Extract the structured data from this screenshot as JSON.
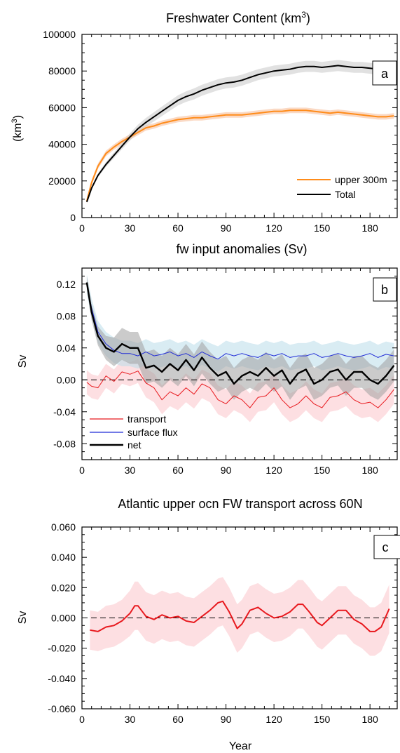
{
  "chart_data": [
    {
      "panel": "a",
      "type": "line",
      "title": "Freshwater Content (km",
      "title_sup": "3",
      "title_close": ")",
      "ylabel": "(km",
      "ylabel_sup": "3",
      "ylabel_close": ")",
      "xlabel": "",
      "xlim": [
        0,
        197
      ],
      "ylim": [
        0,
        100000
      ],
      "xticks": [
        0,
        30,
        60,
        90,
        120,
        150,
        180
      ],
      "yticks": [
        0,
        20000,
        40000,
        60000,
        80000,
        100000
      ],
      "yticklabels": [
        "0",
        "20000",
        "40000",
        "60000",
        "80000",
        "100000"
      ],
      "legend_position": "bottom-right",
      "zero_line": false,
      "series": [
        {
          "name": "upper 300m",
          "color": "#ff8c1a",
          "band_color": "#f5b994",
          "width": 2,
          "x": [
            3,
            6,
            10,
            15,
            20,
            25,
            30,
            35,
            40,
            45,
            50,
            55,
            60,
            65,
            70,
            75,
            80,
            85,
            90,
            95,
            100,
            105,
            110,
            115,
            120,
            125,
            130,
            135,
            140,
            145,
            150,
            155,
            160,
            165,
            170,
            175,
            180,
            185,
            190,
            195
          ],
          "y": [
            9000,
            19000,
            28000,
            35000,
            38500,
            41500,
            44000,
            46500,
            49000,
            50000,
            51500,
            52500,
            53500,
            54000,
            54500,
            54500,
            55000,
            55500,
            56000,
            56000,
            56000,
            56500,
            57000,
            57500,
            58000,
            58000,
            58500,
            58500,
            58500,
            58000,
            57500,
            57000,
            57500,
            57000,
            56500,
            56000,
            55500,
            55000,
            55000,
            55500
          ],
          "band": [
            1500,
            1500,
            1500,
            1500,
            1500,
            1500,
            1500,
            1500,
            1500,
            1500,
            1500,
            1500,
            1500,
            1500,
            1500,
            1500,
            1500,
            1500,
            1500,
            1500,
            1500,
            1500,
            1500,
            1500,
            1500,
            1500,
            1500,
            1500,
            1500,
            1500,
            1500,
            1500,
            1500,
            1500,
            1500,
            1500,
            1500,
            1500,
            1500,
            1500
          ]
        },
        {
          "name": "Total",
          "color": "#000000",
          "band_color": "#c8c8c8",
          "width": 2,
          "x": [
            3,
            6,
            10,
            15,
            20,
            25,
            30,
            35,
            40,
            45,
            50,
            55,
            60,
            65,
            70,
            75,
            80,
            85,
            90,
            95,
            100,
            105,
            110,
            115,
            120,
            125,
            130,
            135,
            140,
            145,
            150,
            155,
            160,
            165,
            170,
            175,
            180,
            185,
            190,
            195
          ],
          "y": [
            8500,
            16000,
            23000,
            29000,
            34000,
            39000,
            44000,
            48500,
            52000,
            55000,
            58000,
            61000,
            64000,
            66000,
            67500,
            69500,
            71000,
            72500,
            73500,
            74000,
            75000,
            76500,
            78000,
            79000,
            80000,
            80500,
            81000,
            82000,
            82500,
            82500,
            82000,
            82500,
            83000,
            82500,
            82000,
            82000,
            81500,
            81000,
            80500,
            81500
          ],
          "band": [
            500,
            700,
            1000,
            1300,
            1500,
            1700,
            2000,
            2200,
            2400,
            2500,
            2600,
            2700,
            2800,
            2900,
            3000,
            3000,
            3000,
            3000,
            3000,
            3000,
            3000,
            3000,
            3000,
            3000,
            3000,
            3000,
            3000,
            3000,
            3000,
            3000,
            3000,
            3000,
            3000,
            3000,
            3000,
            3000,
            3000,
            3000,
            3000,
            3000
          ]
        }
      ]
    },
    {
      "panel": "b",
      "type": "line",
      "title": "fw input anomalies (Sv)",
      "ylabel": "Sv",
      "xlabel": "",
      "xlim": [
        0,
        197
      ],
      "ylim": [
        -0.1,
        0.14
      ],
      "xticks": [
        0,
        30,
        60,
        90,
        120,
        150,
        180
      ],
      "yticks": [
        -0.08,
        -0.04,
        0.0,
        0.04,
        0.08,
        0.12
      ],
      "yticklabels": [
        "-0.08",
        "-0.04",
        "0.00",
        "0.04",
        "0.08",
        "0.12"
      ],
      "legend_position": "bottom-left",
      "zero_line": true,
      "series": [
        {
          "name": "transport",
          "color": "#e8191e",
          "band_color": "#fbc4cb",
          "width": 1,
          "x": [
            3,
            6,
            10,
            15,
            20,
            25,
            30,
            35,
            40,
            45,
            50,
            55,
            60,
            65,
            70,
            75,
            80,
            85,
            90,
            95,
            100,
            105,
            110,
            115,
            120,
            125,
            130,
            135,
            140,
            145,
            150,
            155,
            160,
            165,
            170,
            175,
            180,
            185,
            190,
            195
          ],
          "y": [
            -0.003,
            -0.008,
            -0.01,
            0.005,
            -0.002,
            0.01,
            0.007,
            0.011,
            -0.004,
            -0.01,
            -0.025,
            -0.015,
            -0.02,
            -0.01,
            -0.018,
            -0.005,
            -0.01,
            -0.025,
            -0.03,
            -0.02,
            -0.025,
            -0.035,
            -0.022,
            -0.02,
            -0.01,
            -0.025,
            -0.035,
            -0.03,
            -0.02,
            -0.03,
            -0.035,
            -0.022,
            -0.02,
            -0.015,
            -0.025,
            -0.03,
            -0.028,
            -0.035,
            -0.025,
            -0.012
          ],
          "band": [
            0.015,
            0.015,
            0.015,
            0.015,
            0.015,
            0.015,
            0.015,
            0.015,
            0.018,
            0.018,
            0.018,
            0.018,
            0.018,
            0.018,
            0.018,
            0.018,
            0.018,
            0.018,
            0.018,
            0.018,
            0.018,
            0.018,
            0.018,
            0.018,
            0.018,
            0.018,
            0.018,
            0.018,
            0.018,
            0.018,
            0.018,
            0.018,
            0.018,
            0.018,
            0.018,
            0.018,
            0.018,
            0.018,
            0.018,
            0.018
          ]
        },
        {
          "name": "surface flux",
          "color": "#1f2ad6",
          "band_color": "#b9dce9",
          "width": 1,
          "x": [
            3,
            6,
            10,
            15,
            20,
            25,
            30,
            35,
            40,
            45,
            50,
            55,
            60,
            65,
            70,
            75,
            80,
            85,
            90,
            95,
            100,
            105,
            110,
            115,
            120,
            125,
            130,
            135,
            140,
            145,
            150,
            155,
            160,
            165,
            170,
            175,
            180,
            185,
            190,
            195
          ],
          "y": [
            0.12,
            0.09,
            0.06,
            0.045,
            0.037,
            0.033,
            0.033,
            0.03,
            0.035,
            0.03,
            0.032,
            0.035,
            0.03,
            0.033,
            0.028,
            0.035,
            0.03,
            0.026,
            0.033,
            0.03,
            0.033,
            0.03,
            0.028,
            0.033,
            0.03,
            0.033,
            0.028,
            0.03,
            0.03,
            0.033,
            0.028,
            0.03,
            0.033,
            0.03,
            0.028,
            0.03,
            0.033,
            0.028,
            0.032,
            0.03
          ],
          "band": [
            0.012,
            0.012,
            0.014,
            0.015,
            0.016,
            0.016,
            0.016,
            0.016,
            0.016,
            0.016,
            0.016,
            0.016,
            0.016,
            0.016,
            0.016,
            0.016,
            0.016,
            0.016,
            0.016,
            0.016,
            0.016,
            0.016,
            0.016,
            0.016,
            0.016,
            0.016,
            0.016,
            0.016,
            0.016,
            0.016,
            0.016,
            0.016,
            0.016,
            0.016,
            0.016,
            0.016,
            0.016,
            0.016,
            0.016,
            0.016
          ]
        },
        {
          "name": "net",
          "color": "#000000",
          "band_color": "#a0a0a0",
          "width": 2.4,
          "x": [
            3,
            6,
            10,
            15,
            20,
            25,
            30,
            35,
            40,
            45,
            50,
            55,
            60,
            65,
            70,
            75,
            80,
            85,
            90,
            95,
            100,
            105,
            110,
            115,
            120,
            125,
            130,
            135,
            140,
            145,
            150,
            155,
            160,
            165,
            170,
            175,
            180,
            185,
            190,
            195
          ],
          "y": [
            0.122,
            0.085,
            0.055,
            0.04,
            0.035,
            0.045,
            0.04,
            0.04,
            0.015,
            0.018,
            0.01,
            0.02,
            0.012,
            0.025,
            0.012,
            0.028,
            0.015,
            0.005,
            0.01,
            -0.005,
            0.005,
            0.01,
            0.005,
            0.015,
            0.005,
            0.012,
            -0.005,
            0.008,
            0.013,
            -0.005,
            0.0,
            0.01,
            0.013,
            0.0,
            0.01,
            0.01,
            0.0,
            -0.005,
            0.005,
            0.018
          ],
          "band": [
            0.008,
            0.01,
            0.012,
            0.015,
            0.018,
            0.02,
            0.02,
            0.02,
            0.02,
            0.02,
            0.02,
            0.02,
            0.02,
            0.02,
            0.02,
            0.02,
            0.02,
            0.02,
            0.02,
            0.02,
            0.02,
            0.02,
            0.02,
            0.02,
            0.02,
            0.02,
            0.02,
            0.02,
            0.02,
            0.02,
            0.02,
            0.02,
            0.02,
            0.02,
            0.02,
            0.02,
            0.02,
            0.02,
            0.02,
            0.02
          ]
        }
      ]
    },
    {
      "panel": "c",
      "type": "line",
      "title": "Atlantic upper ocn FW transport across 60N",
      "ylabel": "Sv",
      "xlabel": "Year",
      "xlim": [
        0,
        197
      ],
      "ylim": [
        -0.06,
        0.06
      ],
      "xticks": [
        0,
        30,
        60,
        90,
        120,
        150,
        180
      ],
      "yticks": [
        -0.06,
        -0.04,
        -0.02,
        0.0,
        0.02,
        0.04,
        0.06
      ],
      "yticklabels": [
        "-0.060",
        "-0.040",
        "-0.020",
        "0.000",
        "0.020",
        "0.040",
        "0.060"
      ],
      "legend_position": "none",
      "zero_line": true,
      "series": [
        {
          "color": "#e8191e",
          "band_color": "#fbc4cb",
          "width": 2,
          "x": [
            5,
            10,
            15,
            20,
            25,
            30,
            33,
            35,
            40,
            45,
            50,
            55,
            60,
            65,
            70,
            75,
            80,
            85,
            88,
            92,
            97,
            100,
            105,
            110,
            115,
            120,
            125,
            130,
            135,
            138,
            142,
            147,
            150,
            155,
            160,
            165,
            170,
            175,
            180,
            183,
            187,
            192
          ],
          "y": [
            -0.008,
            -0.009,
            -0.006,
            -0.005,
            -0.002,
            0.003,
            0.008,
            0.008,
            0.001,
            -0.001,
            0.002,
            0.0,
            0.001,
            -0.002,
            -0.003,
            0.001,
            0.005,
            0.01,
            0.011,
            0.004,
            -0.007,
            -0.004,
            0.005,
            0.007,
            0.003,
            0.0,
            0.001,
            0.004,
            0.009,
            0.009,
            0.004,
            -0.003,
            -0.005,
            0.0,
            0.005,
            0.005,
            -0.001,
            -0.004,
            -0.009,
            -0.009,
            -0.006,
            0.006
          ],
          "band": [
            0.013,
            0.013,
            0.014,
            0.014,
            0.014,
            0.015,
            0.016,
            0.016,
            0.016,
            0.016,
            0.016,
            0.016,
            0.016,
            0.016,
            0.016,
            0.016,
            0.016,
            0.016,
            0.016,
            0.016,
            0.016,
            0.016,
            0.016,
            0.016,
            0.016,
            0.016,
            0.016,
            0.016,
            0.016,
            0.016,
            0.016,
            0.016,
            0.016,
            0.016,
            0.016,
            0.016,
            0.016,
            0.016,
            0.016,
            0.016,
            0.016,
            0.016
          ]
        }
      ]
    }
  ]
}
